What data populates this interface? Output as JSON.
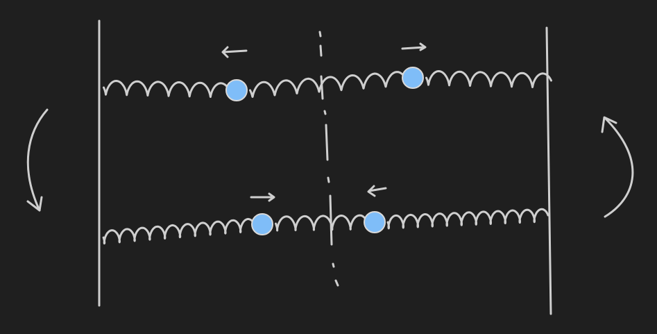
{
  "colors": {
    "background": "#1f1f1f",
    "stroke": "#cfcfcf",
    "mass_fill": "#7fbdf8",
    "mass_stroke": "#d9d9d9"
  },
  "diagram": {
    "description_elements": [
      "left-wall-line",
      "right-wall-line",
      "top-spring-chain",
      "bottom-spring-chain",
      "center-dashed-symmetry-line",
      "left-curved-arrow",
      "right-curved-arrow",
      "four-masses",
      "four-direction-arrows"
    ]
  }
}
